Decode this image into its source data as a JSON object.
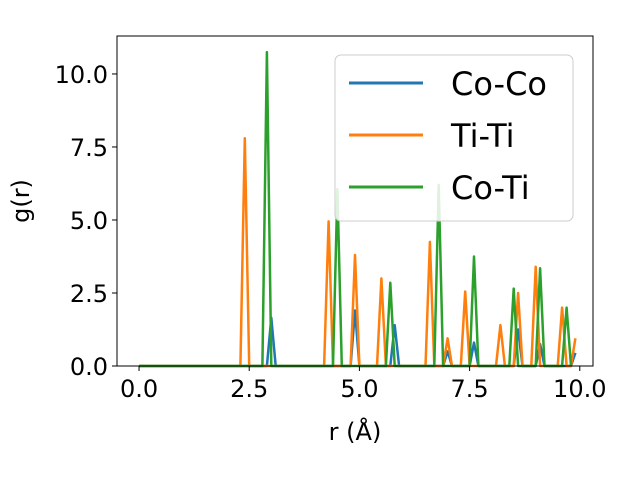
{
  "chart_data": {
    "type": "line",
    "title": "",
    "xlabel": "r (Å)",
    "ylabel": "g(r)",
    "xlim": [
      -0.5,
      10.3
    ],
    "ylim": [
      0.0,
      11.3
    ],
    "xticks": [
      0.0,
      2.5,
      5.0,
      7.5,
      10.0
    ],
    "xtick_labels": [
      "0.0",
      "2.5",
      "5.0",
      "7.5",
      "10.0"
    ],
    "yticks": [
      0.0,
      2.5,
      5.0,
      7.5,
      10.0
    ],
    "ytick_labels": [
      "0.0",
      "2.5",
      "5.0",
      "7.5",
      "10.0"
    ],
    "grid": false,
    "legend_position": "top-right",
    "series": [
      {
        "name": "Co-Co",
        "color": "#1f77b4",
        "x": [
          0.0,
          2.9,
          3.0,
          3.1,
          4.8,
          4.9,
          5.0,
          5.7,
          5.8,
          5.9,
          6.9,
          7.0,
          7.1,
          7.5,
          7.6,
          7.7,
          8.5,
          8.6,
          8.7,
          9.0,
          9.1,
          9.2,
          9.8,
          9.9
        ],
        "y": [
          0.0,
          0.0,
          1.65,
          0.0,
          0.0,
          1.9,
          0.0,
          0.0,
          1.4,
          0.0,
          0.0,
          0.5,
          0.0,
          0.0,
          0.8,
          0.0,
          0.0,
          1.25,
          0.0,
          0.0,
          0.75,
          0.0,
          0.0,
          0.45
        ]
      },
      {
        "name": "Ti-Ti",
        "color": "#ff7f0e",
        "x": [
          0.0,
          2.3,
          2.4,
          2.5,
          4.2,
          4.3,
          4.4,
          4.8,
          4.9,
          5.0,
          5.4,
          5.5,
          5.6,
          6.5,
          6.6,
          6.7,
          6.9,
          7.0,
          7.1,
          7.3,
          7.4,
          7.5,
          8.1,
          8.2,
          8.3,
          8.5,
          8.6,
          8.7,
          8.9,
          9.0,
          9.1,
          9.5,
          9.6,
          9.7,
          9.8,
          9.9
        ],
        "y": [
          0.0,
          0.0,
          7.8,
          0.0,
          0.0,
          4.95,
          0.0,
          0.0,
          3.8,
          0.0,
          0.0,
          3.0,
          0.0,
          0.0,
          4.25,
          0.0,
          0.0,
          0.95,
          0.0,
          0.0,
          2.55,
          0.0,
          0.0,
          1.4,
          0.0,
          0.0,
          2.5,
          0.0,
          0.0,
          3.4,
          0.0,
          0.0,
          2.0,
          0.0,
          0.0,
          0.95
        ]
      },
      {
        "name": "Co-Ti",
        "color": "#2ca02c",
        "x": [
          0.0,
          2.8,
          2.9,
          3.0,
          4.4,
          4.5,
          4.6,
          5.6,
          5.7,
          5.8,
          6.7,
          6.8,
          6.9,
          7.5,
          7.6,
          7.7,
          8.4,
          8.5,
          8.6,
          9.0,
          9.1,
          9.2,
          9.6,
          9.7,
          9.8
        ],
        "y": [
          0.0,
          0.0,
          10.75,
          0.0,
          0.0,
          6.05,
          0.0,
          0.0,
          2.85,
          0.0,
          0.0,
          6.2,
          0.0,
          0.0,
          3.75,
          0.0,
          0.0,
          2.65,
          0.0,
          0.0,
          3.35,
          0.0,
          0.0,
          2.0,
          0.0
        ]
      }
    ]
  }
}
